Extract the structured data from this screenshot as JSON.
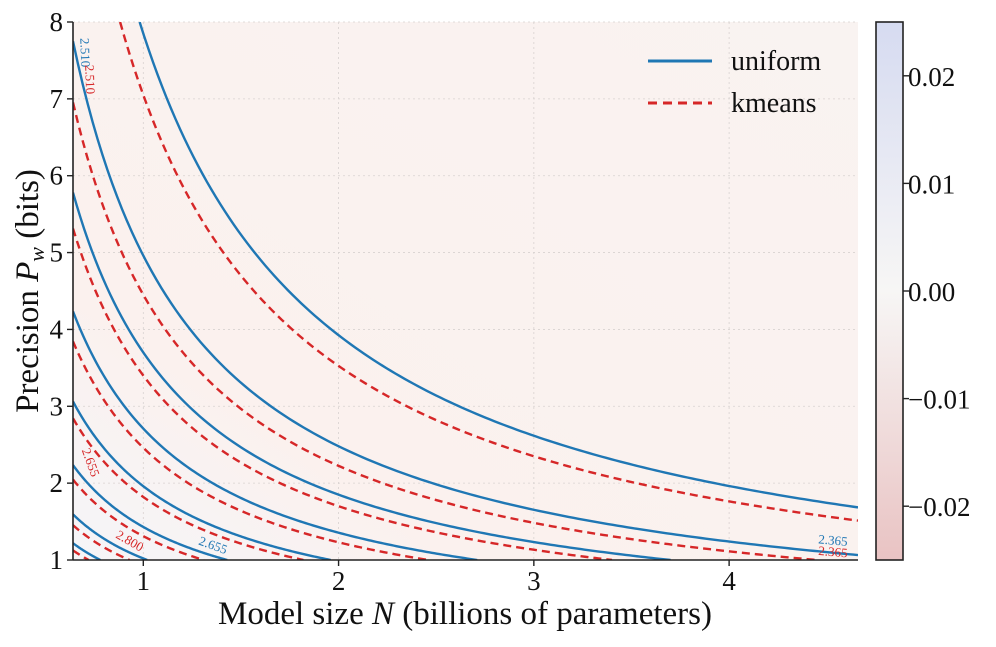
{
  "chart_data": {
    "type": "line",
    "plot_kind": "contour",
    "xlabel_prefix": "Model size ",
    "xlabel_var": "N",
    "xlabel_suffix": " (billions of parameters)",
    "ylabel_prefix": "Precision ",
    "ylabel_var": "P",
    "ylabel_sub": "w",
    "ylabel_suffix": " (bits)",
    "xlim": [
      0.64,
      4.66
    ],
    "ylim": [
      1,
      8
    ],
    "xticks": [
      1,
      2,
      3,
      4
    ],
    "yticks": [
      1,
      2,
      3,
      4,
      5,
      6,
      7,
      8
    ],
    "grid": true,
    "legend_position": "top-right",
    "series": [
      {
        "name": "uniform",
        "color": "#1f77b4",
        "dash": "solid",
        "level_constants": [
          0.78,
          1.02,
          1.43,
          1.96,
          2.71,
          3.7,
          4.96,
          7.85
        ]
      },
      {
        "name": "kmeans",
        "color": "#d62728",
        "dash": "dashed",
        "level_constants": [
          0.72,
          0.93,
          1.31,
          1.82,
          2.46,
          3.4,
          4.45,
          7.05
        ]
      }
    ],
    "contour_labels": [
      {
        "text": "2.510",
        "series": "uniform",
        "x": 0.68,
        "y": 7.6,
        "rotate": 88
      },
      {
        "text": "2.510",
        "series": "kmeans",
        "x": 0.705,
        "y": 7.25,
        "rotate": 88
      },
      {
        "text": "2.655",
        "series": "kmeans",
        "x": 0.71,
        "y": 2.25,
        "rotate": 70
      },
      {
        "text": "2.800",
        "series": "kmeans",
        "x": 0.92,
        "y": 1.2,
        "rotate": 30
      },
      {
        "text": "2.655",
        "series": "uniform",
        "x": 1.35,
        "y": 1.14,
        "rotate": 20
      },
      {
        "text": "2.365",
        "series": "uniform",
        "x": 4.53,
        "y": 1.2,
        "rotate": 5
      },
      {
        "text": "2.365",
        "series": "kmeans",
        "x": 4.53,
        "y": 1.05,
        "rotate": 5
      }
    ],
    "colorbar": {
      "range": [
        -0.025,
        0.025
      ],
      "ticks": [
        "0.02",
        "0.01",
        "0.00",
        "−0.01",
        "−0.02"
      ],
      "tick_values": [
        0.02,
        0.01,
        0.0,
        -0.01,
        -0.02
      ],
      "colormap": "coolwarm_r",
      "low_color": "#e9c3c3",
      "mid_color": "#f7f6f5",
      "high_color": "#d6dbf1"
    },
    "background_field": "kmeans minus uniform difference, mostly slightly negative (light red)"
  }
}
